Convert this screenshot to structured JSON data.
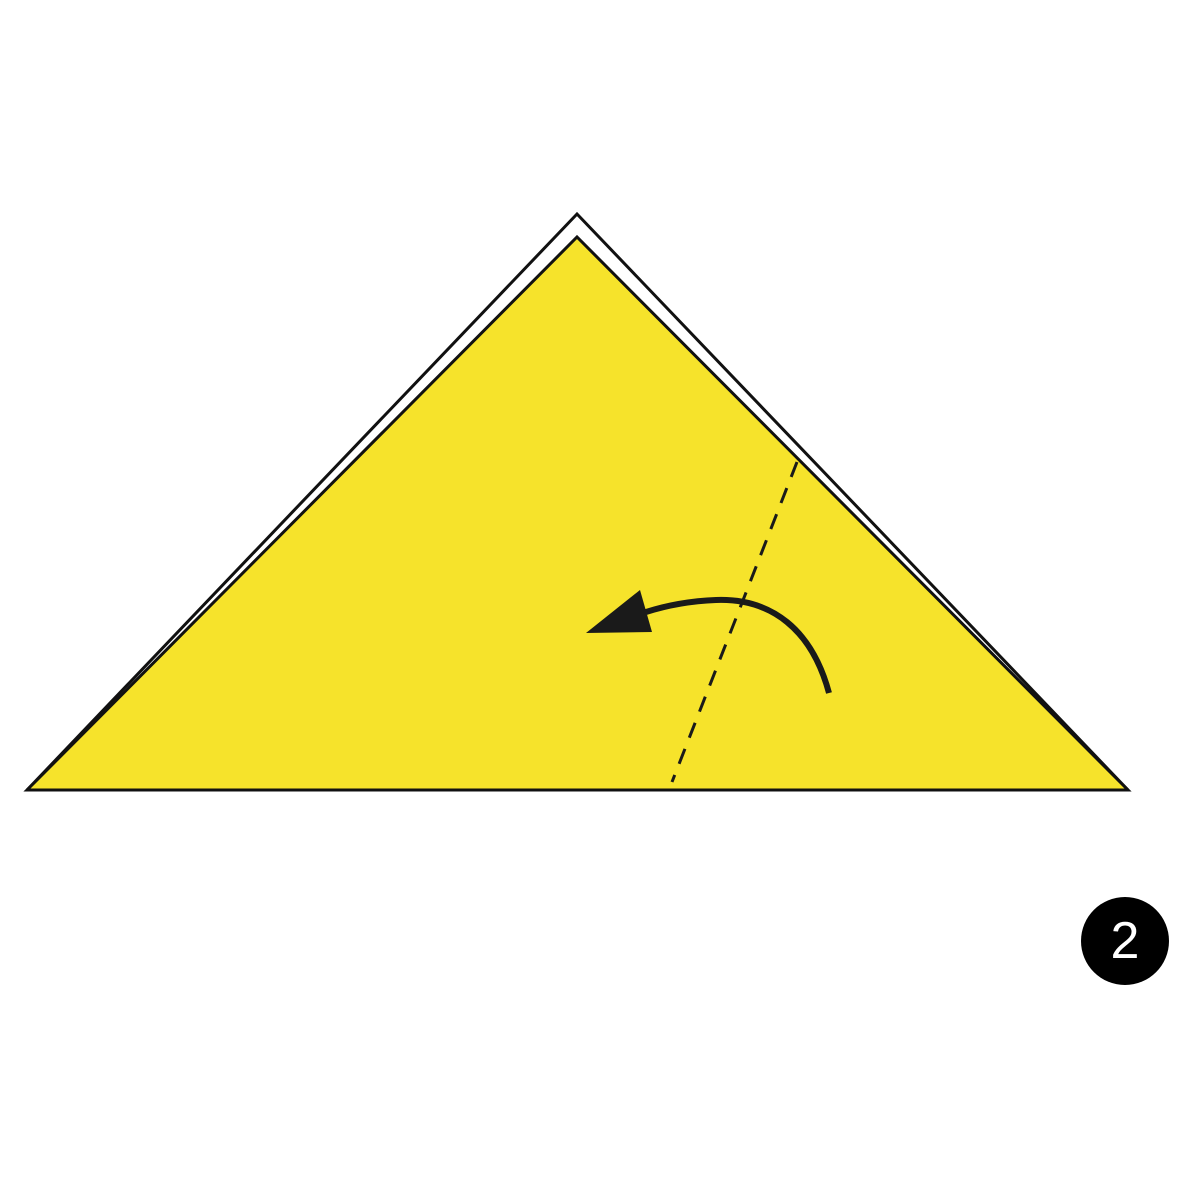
{
  "step": {
    "number": "2"
  },
  "colors": {
    "paper": "#F6E32B",
    "outline": "#111111",
    "arrow": "#1a1a1a",
    "badge": "#000000",
    "background": "#ffffff"
  },
  "icons": {
    "fold_arrow": "curved-arrow-left-icon",
    "fold_line": "dashed-valley-fold-line"
  }
}
